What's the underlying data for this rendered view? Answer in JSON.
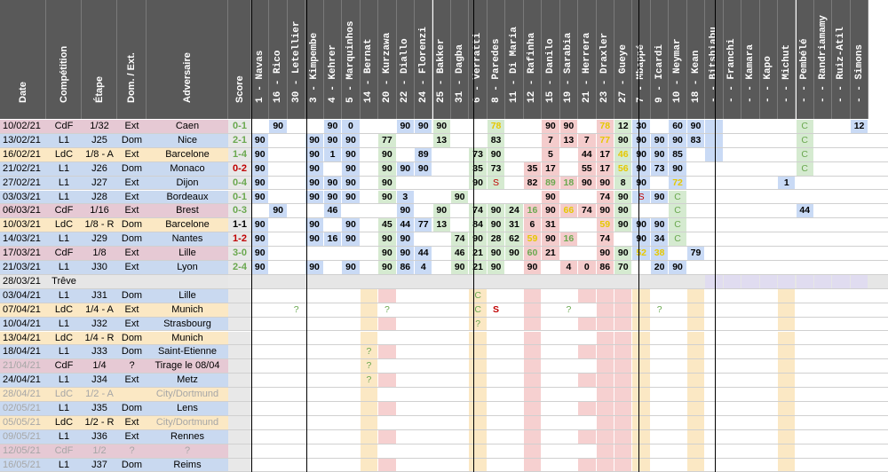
{
  "headers": {
    "date": "Date",
    "competition": "Compétition",
    "etape": "Étape",
    "dom_ext": "Dom. / Ext.",
    "adversaire": "Adversaire",
    "score": "Score"
  },
  "players": [
    {
      "num": "1",
      "name": "Navas"
    },
    {
      "num": "16",
      "name": "Rico"
    },
    {
      "num": "30",
      "name": "Letellier"
    },
    {
      "num": "3",
      "name": "Kimpembe"
    },
    {
      "num": "4",
      "name": "Kehrer"
    },
    {
      "num": "5",
      "name": "Marquinhos"
    },
    {
      "num": "14",
      "name": "Bernat"
    },
    {
      "num": "20",
      "name": "Kurzawa"
    },
    {
      "num": "22",
      "name": "Diallo"
    },
    {
      "num": "24",
      "name": "Florenzi"
    },
    {
      "num": "25",
      "name": "Bakker"
    },
    {
      "num": "31",
      "name": "Dagba"
    },
    {
      "num": "6",
      "name": "Verratti"
    },
    {
      "num": "8",
      "name": "Paredes"
    },
    {
      "num": "11",
      "name": "Di Maria"
    },
    {
      "num": "12",
      "name": "Rafinha"
    },
    {
      "num": "15",
      "name": "Danilo"
    },
    {
      "num": "19",
      "name": "Sarabia"
    },
    {
      "num": "21",
      "name": "Herrera"
    },
    {
      "num": "23",
      "name": "Draxler"
    },
    {
      "num": "27",
      "name": "Gueye"
    },
    {
      "num": "7",
      "name": "Mbappé"
    },
    {
      "num": "9",
      "name": "Icardi"
    },
    {
      "num": "10",
      "name": "Neymar"
    },
    {
      "num": "18",
      "name": "Kean"
    },
    {
      "num": "-",
      "name": "Bitshiabu"
    },
    {
      "num": "-",
      "name": "Franchi"
    },
    {
      "num": "-",
      "name": "Kamara"
    },
    {
      "num": "-",
      "name": "Kapo"
    },
    {
      "num": "-",
      "name": "Michut"
    },
    {
      "num": "-",
      "name": "Pembélé"
    },
    {
      "num": "-",
      "name": "Randriamamy"
    },
    {
      "num": "-",
      "name": "Ruiz-Atil"
    },
    {
      "num": "-",
      "name": "Simons"
    }
  ],
  "rows": [
    {
      "date": "10/02/21",
      "comp": "CdF",
      "etape": "1/32",
      "lieu": "Ext",
      "adv": "Caen",
      "score": "0-1",
      "type": "cdf",
      "played": true,
      "cells": [
        "",
        "90",
        "",
        "",
        "90",
        "0",
        "",
        "",
        "90",
        "90",
        "90",
        "",
        "",
        "78",
        "",
        "",
        "90",
        "90",
        "",
        "78",
        "12",
        "30",
        "",
        "60",
        "90",
        "",
        "",
        "",
        "",
        "",
        "C",
        "",
        "",
        "12"
      ]
    },
    {
      "date": "13/02/21",
      "comp": "L1",
      "etape": "J25",
      "lieu": "Dom",
      "adv": "Nice",
      "score": "2-1",
      "type": "l1",
      "played": true,
      "cells": [
        "90",
        "",
        "",
        "90",
        "90",
        "90",
        "",
        "77",
        "",
        "",
        "13",
        "",
        "",
        "83",
        "",
        "",
        "7",
        "13",
        "7",
        "77",
        "90",
        "90",
        "90",
        "90",
        "83",
        "",
        "",
        "",
        "",
        "",
        "C",
        "",
        "",
        ""
      ]
    },
    {
      "date": "16/02/21",
      "comp": "LdC",
      "etape": "1/8 - A",
      "lieu": "Ext",
      "adv": "Barcelone",
      "score": "1-4",
      "type": "ldc",
      "played": true,
      "cells": [
        "90",
        "",
        "",
        "90",
        "1",
        "90",
        "",
        "90",
        "",
        "89",
        "",
        "",
        "73",
        "90",
        "",
        "",
        "5",
        "",
        "44",
        "17",
        "46",
        "90",
        "90",
        "85",
        "",
        "",
        "",
        "",
        "",
        "",
        "C",
        "",
        "",
        ""
      ]
    },
    {
      "date": "21/02/21",
      "comp": "L1",
      "etape": "J26",
      "lieu": "Dom",
      "adv": "Monaco",
      "score": "0-2",
      "type": "l1",
      "played": true,
      "cells": [
        "90",
        "",
        "",
        "90",
        "",
        "90",
        "",
        "90",
        "90",
        "90",
        "",
        "",
        "35",
        "73",
        "",
        "35",
        "17",
        "",
        "55",
        "17",
        "56",
        "90",
        "73",
        "90",
        "",
        "",
        "",
        "",
        "",
        "",
        "C",
        "",
        "",
        ""
      ]
    },
    {
      "date": "27/02/21",
      "comp": "L1",
      "etape": "J27",
      "lieu": "Ext",
      "adv": "Dijon",
      "score": "0-4",
      "type": "l1",
      "played": true,
      "cells": [
        "90",
        "",
        "",
        "90",
        "90",
        "90",
        "",
        "90",
        "",
        "",
        "",
        "",
        "90",
        "S",
        "",
        "82",
        "89",
        "18",
        "90",
        "90",
        "8",
        "90",
        "",
        "72",
        "",
        "",
        "",
        "",
        "",
        "1",
        "",
        "",
        "",
        ""
      ]
    },
    {
      "date": "03/03/21",
      "comp": "L1",
      "etape": "J28",
      "lieu": "Ext",
      "adv": "Bordeaux",
      "score": "0-1",
      "type": "l1",
      "played": true,
      "cells": [
        "90",
        "",
        "",
        "90",
        "90",
        "90",
        "",
        "90",
        "3",
        "",
        "",
        "90",
        "",
        "",
        "",
        "",
        "90",
        "",
        "",
        "74",
        "90",
        "S",
        "90",
        "C",
        "",
        "",
        "",
        "",
        "",
        "",
        "",
        "",
        "",
        ""
      ]
    },
    {
      "date": "06/03/21",
      "comp": "CdF",
      "etape": "1/16",
      "lieu": "Ext",
      "adv": "Brest",
      "score": "0-3",
      "type": "cdf",
      "played": true,
      "cells": [
        "",
        "90",
        "",
        "",
        "46",
        "",
        "",
        "",
        "90",
        "",
        "90",
        "",
        "74",
        "90",
        "24",
        "16",
        "90",
        "66",
        "74",
        "90",
        "90",
        "",
        "",
        "C",
        "",
        "",
        "",
        "",
        "",
        "",
        "44",
        "",
        "",
        ""
      ]
    },
    {
      "date": "10/03/21",
      "comp": "LdC",
      "etape": "1/8 - R",
      "lieu": "Dom",
      "adv": "Barcelone",
      "score": "1-1",
      "type": "ldc",
      "played": true,
      "cells": [
        "90",
        "",
        "",
        "90",
        "",
        "90",
        "",
        "45",
        "44",
        "77",
        "13",
        "",
        "84",
        "90",
        "31",
        "6",
        "31",
        "",
        "",
        "59",
        "90",
        "90",
        "90",
        "C",
        "",
        "",
        "",
        "",
        "",
        "",
        "",
        "",
        "",
        ""
      ]
    },
    {
      "date": "14/03/21",
      "comp": "L1",
      "etape": "J29",
      "lieu": "Dom",
      "adv": "Nantes",
      "score": "1-2",
      "type": "l1",
      "played": true,
      "cells": [
        "90",
        "",
        "",
        "90",
        "16",
        "90",
        "",
        "90",
        "90",
        "",
        "",
        "74",
        "90",
        "28",
        "62",
        "59",
        "90",
        "16",
        "",
        "74",
        "",
        "90",
        "34",
        "C",
        "",
        "",
        "",
        "",
        "",
        "",
        "",
        "",
        "",
        ""
      ]
    },
    {
      "date": "17/03/21",
      "comp": "CdF",
      "etape": "1/8",
      "lieu": "Ext",
      "adv": "Lille",
      "score": "3-0",
      "type": "cdf",
      "played": true,
      "cells": [
        "90",
        "",
        "",
        "",
        "",
        "",
        "",
        "90",
        "90",
        "44",
        "",
        "46",
        "21",
        "90",
        "90",
        "60",
        "21",
        "",
        "",
        "90",
        "90",
        "52",
        "38",
        "",
        "79",
        "",
        "",
        "",
        "",
        "",
        "",
        "",
        "",
        ""
      ]
    },
    {
      "date": "21/03/21",
      "comp": "L1",
      "etape": "J30",
      "lieu": "Ext",
      "adv": "Lyon",
      "score": "2-4",
      "type": "l1",
      "played": true,
      "cells": [
        "90",
        "",
        "",
        "90",
        "",
        "90",
        "",
        "90",
        "86",
        "4",
        "",
        "90",
        "21",
        "90",
        "",
        "90",
        "",
        "4",
        "0",
        "86",
        "70",
        "",
        "20",
        "90",
        "",
        "",
        "",
        "",
        "",
        "",
        "",
        "",
        "",
        ""
      ]
    },
    {
      "date": "28/03/21",
      "comp": "Trêve",
      "etape": "",
      "lieu": "",
      "adv": "",
      "score": "",
      "type": "treve",
      "played": false,
      "cells": []
    },
    {
      "date": "03/04/21",
      "comp": "L1",
      "etape": "J31",
      "lieu": "Dom",
      "adv": "Lille",
      "score": "",
      "type": "l1",
      "played": false,
      "cells": [
        "",
        "",
        "",
        "",
        "",
        "",
        "",
        "",
        "",
        "",
        "",
        "",
        "C",
        "",
        "",
        "",
        "",
        "",
        "",
        "",
        "",
        "",
        "",
        "",
        "",
        "",
        "",
        "",
        "",
        "",
        "",
        "",
        "",
        ""
      ]
    },
    {
      "date": "07/04/21",
      "comp": "LdC",
      "etape": "1/4 - A",
      "lieu": "Ext",
      "adv": "Munich",
      "score": "",
      "type": "ldc",
      "played": false,
      "cells": [
        "",
        "",
        "?",
        "",
        "",
        "",
        "",
        "?",
        "",
        "",
        "",
        "",
        "C",
        "S",
        "",
        "",
        "",
        "?",
        "",
        "",
        "",
        "",
        "?",
        "",
        "",
        "",
        "",
        "",
        "",
        "",
        "",
        "",
        "",
        ""
      ]
    },
    {
      "date": "10/04/21",
      "comp": "L1",
      "etape": "J32",
      "lieu": "Ext",
      "adv": "Strasbourg",
      "score": "",
      "type": "l1",
      "played": false,
      "cells": [
        "",
        "",
        "",
        "",
        "",
        "",
        "",
        "",
        "",
        "",
        "",
        "",
        "?",
        "",
        "",
        "",
        "",
        "",
        "",
        "",
        "",
        "",
        "",
        "",
        "",
        "",
        "",
        "",
        "",
        "",
        "",
        "",
        "",
        ""
      ]
    },
    {
      "date": "13/04/21",
      "comp": "LdC",
      "etape": "1/4 - R",
      "lieu": "Dom",
      "adv": "Munich",
      "score": "",
      "type": "ldc",
      "played": false,
      "cells": []
    },
    {
      "date": "18/04/21",
      "comp": "L1",
      "etape": "J33",
      "lieu": "Dom",
      "adv": "Saint-Etienne",
      "score": "",
      "type": "l1",
      "played": false,
      "cells": [
        "",
        "",
        "",
        "",
        "",
        "",
        "?",
        "",
        "",
        "",
        "",
        "",
        "",
        "",
        "",
        "",
        "",
        "",
        "",
        "",
        "",
        "",
        "",
        "",
        "",
        "",
        "",
        "",
        "",
        "",
        "",
        "",
        "",
        ""
      ]
    },
    {
      "date": "21/04/21",
      "comp": "CdF",
      "etape": "1/4",
      "lieu": "?",
      "adv": "Tirage le 08/04",
      "score": "",
      "type": "cdf",
      "played": false,
      "greydate": true,
      "cells": [
        "",
        "",
        "",
        "",
        "",
        "",
        "?",
        "",
        "",
        "",
        "",
        "",
        "",
        "",
        "",
        "",
        "",
        "",
        "",
        "",
        "",
        "",
        "",
        "",
        "",
        "",
        "",
        "",
        "",
        "",
        "",
        "",
        "",
        ""
      ]
    },
    {
      "date": "24/04/21",
      "comp": "L1",
      "etape": "J34",
      "lieu": "Ext",
      "adv": "Metz",
      "score": "",
      "type": "l1",
      "played": false,
      "cells": [
        "",
        "",
        "",
        "",
        "",
        "",
        "?",
        "",
        "",
        "",
        "",
        "",
        "",
        "",
        "",
        "",
        "",
        "",
        "",
        "",
        "",
        "",
        "",
        "",
        "",
        "",
        "",
        "",
        "",
        "",
        "",
        "",
        "",
        ""
      ]
    },
    {
      "date": "28/04/21",
      "comp": "LdC",
      "etape": "1/2 - A",
      "lieu": "",
      "adv": "City/Dortmund",
      "score": "",
      "type": "ldc",
      "played": false,
      "grey": true,
      "cells": []
    },
    {
      "date": "02/05/21",
      "comp": "L1",
      "etape": "J35",
      "lieu": "Dom",
      "adv": "Lens",
      "score": "",
      "type": "l1",
      "played": false,
      "greydate": true,
      "cells": []
    },
    {
      "date": "05/05/21",
      "comp": "LdC",
      "etape": "1/2 - R",
      "lieu": "Ext",
      "adv": "City/Dortmund",
      "score": "",
      "type": "ldc",
      "played": false,
      "greydate": true,
      "greyadv": true,
      "cells": []
    },
    {
      "date": "09/05/21",
      "comp": "L1",
      "etape": "J36",
      "lieu": "Ext",
      "adv": "Rennes",
      "score": "",
      "type": "l1",
      "played": false,
      "greydate": true,
      "cells": []
    },
    {
      "date": "12/05/21",
      "comp": "CdF",
      "etape": "1/2",
      "lieu": "?",
      "adv": "?",
      "score": "",
      "type": "cdf",
      "played": false,
      "grey": true,
      "cells": []
    },
    {
      "date": "16/05/21",
      "comp": "L1",
      "etape": "J37",
      "lieu": "Dom",
      "adv": "Reims",
      "score": "",
      "type": "l1",
      "played": false,
      "greydate": true,
      "cells": []
    }
  ],
  "colors": {
    "header_bg": "#595959",
    "cdf_row": "#e6c9d4",
    "l1_row": "#c9d9f0",
    "ldc_row": "#fbe8c4",
    "treve_row": "#d9d9d9",
    "gk_fill": "#c9daf5",
    "def_fill": "#c9daf5",
    "mid_fill": "#d5ead0",
    "att_fill": "#c9daf5",
    "sub_fill": "#fbe3b7",
    "loss_score": "#c00000",
    "win_score": "#6aa84f",
    "draw_score": "#000000",
    "yellow_num": "#e6c800",
    "green_num": "#6aa84f",
    "red_S": "#c00000"
  }
}
